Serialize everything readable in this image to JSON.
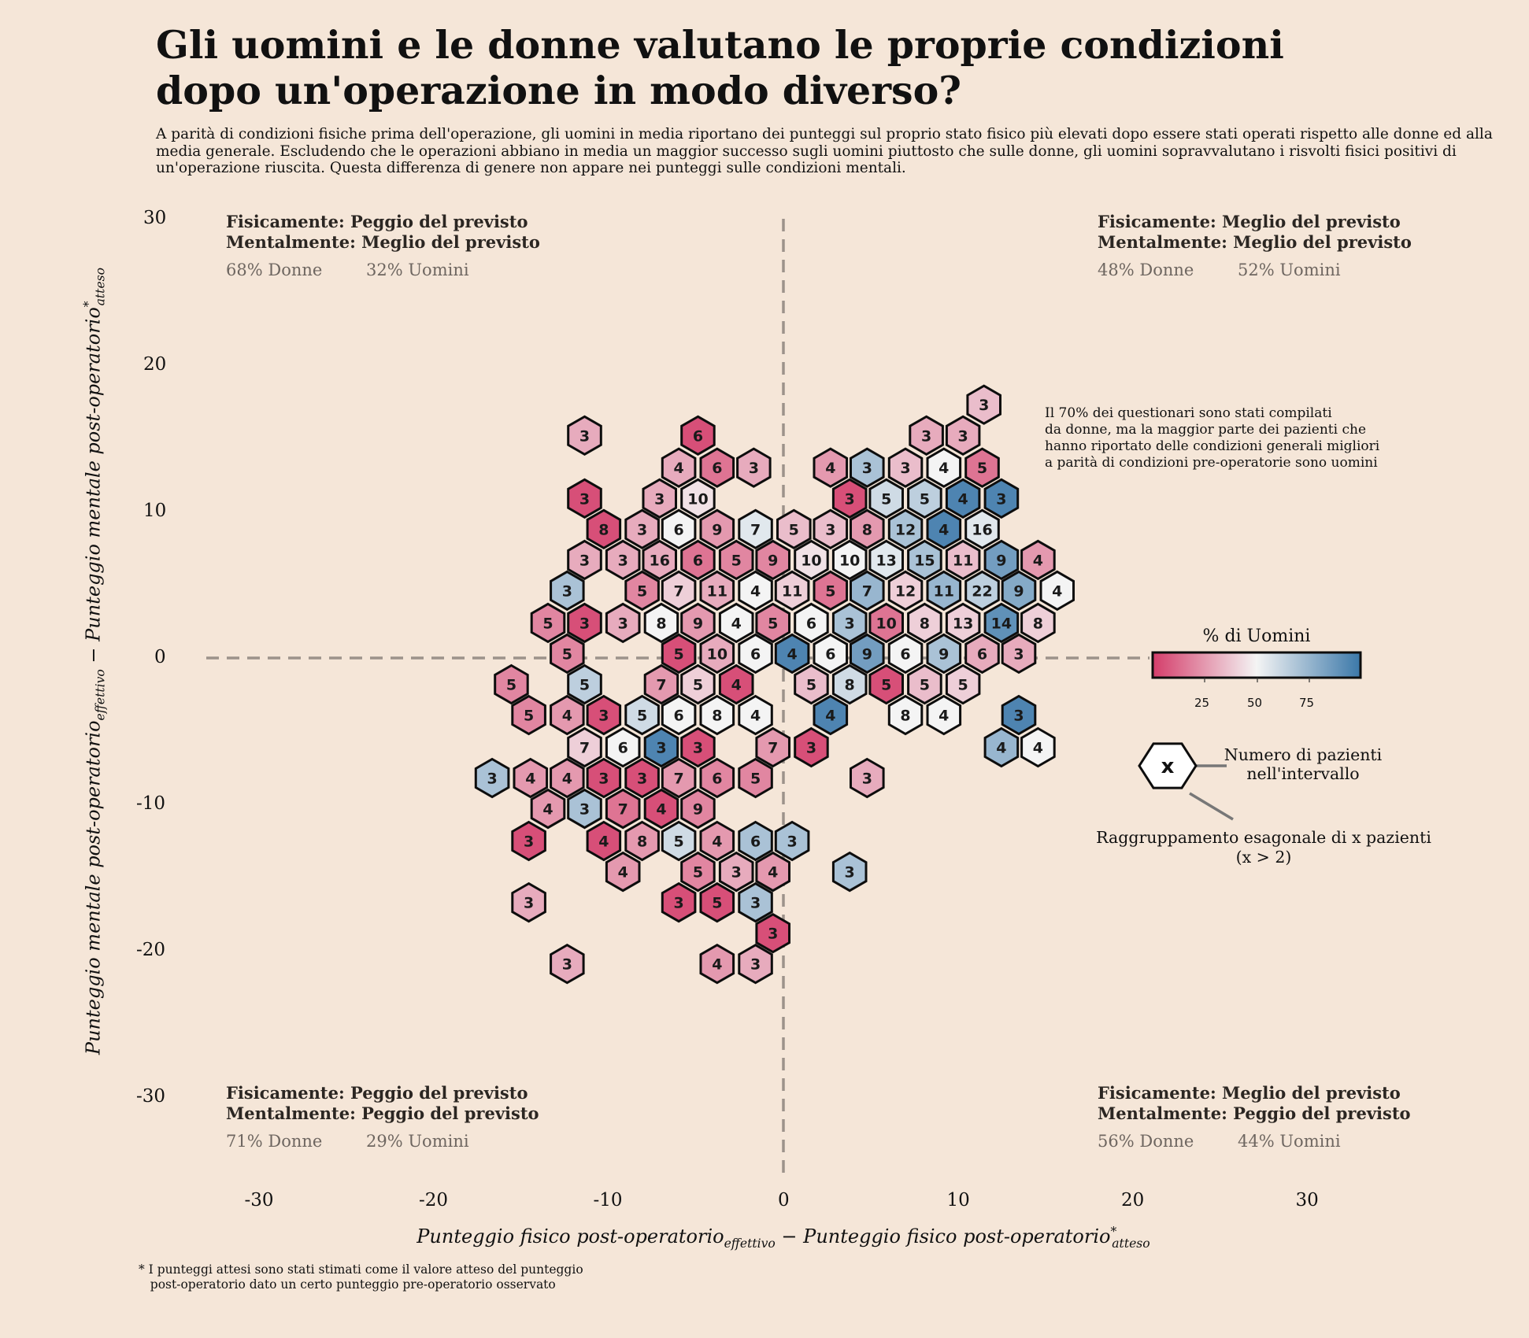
{
  "title": "Gli uomini e le donne valutano le proprie condizioni dopo un'operazione in modo diverso?",
  "subtitle": "A parità di condizioni fisiche prima dell'operazione, gli uomini in media riportano dei punteggi sul proprio stato fisico più elevati dopo essere stati operati rispetto alle donne ed alla media generale. Escludendo che le operazioni abbiano in media un maggior successo sugli uomini piuttosto che sulle donne, gli uomini sopravvalutano i risvolti fisici positivi di un'operazione riuscita. Questa differenza di genere non appare nei punteggi sulle condizioni mentali.",
  "quadrants": {
    "top_left": {
      "phys": "Fisicamente: Peggio del previsto",
      "ment": "Mentalmente: Meglio del previsto",
      "women": "68% Donne",
      "men": "32% Uomini"
    },
    "top_right": {
      "phys": "Fisicamente: Meglio del previsto",
      "ment": "Mentalmente: Meglio del previsto",
      "women": "48% Donne",
      "men": "52% Uomini"
    },
    "bottom_left": {
      "phys": "Fisicamente: Peggio del previsto",
      "ment": "Mentalmente: Peggio del previsto",
      "women": "71% Donne",
      "men": "29% Uomini"
    },
    "bottom_right": {
      "phys": "Fisicamente: Meglio del previsto",
      "ment": "Mentalmente: Peggio del previsto",
      "women": "56% Donne",
      "men": "44% Uomini"
    }
  },
  "annotation": "Il 70% dei questionari sono stati compilati\nda donne, ma la maggior parte dei pazienti che\nhanno riportato delle condizioni generali migliori\na parità di condizioni pre-operatorie sono uomini",
  "legend": {
    "colorbar_title": "% di Uomini",
    "colorbar_ticks": [
      "25",
      "50",
      "75"
    ],
    "hex_symbol": "x",
    "count_label": "Numero di pazienti\nnell'intervallo",
    "hex_label": "Raggruppamento esagonale di x pazienti\n(x > 2)"
  },
  "axes": {
    "xlabel_main": "Punteggio fisico post-operatorio",
    "xlabel_sub1": "effettivo",
    "xlabel_mid": " − Punteggio fisico post-operatorio",
    "xlabel_sup": "*",
    "xlabel_sub2": "atteso",
    "ylabel_main": "Punteggio mentale post-operatorio",
    "ylabel_sub1": "effettivo",
    "ylabel_mid": " − Punteggio mentale post-operatorio",
    "ylabel_sup": "*",
    "ylabel_sub2": "atteso",
    "xticks": [
      "-30",
      "-20",
      "-10",
      "0",
      "10",
      "20",
      "30"
    ],
    "yticks": [
      "30",
      "20",
      "10",
      "0",
      "-10",
      "-20",
      "-30"
    ]
  },
  "footnote": "* I punteggi attesi sono stati stimati come il valore atteso del punteggio\n   post-operatorio dato un certo punteggio pre-operatorio osservato",
  "colors": {
    "background": "#f5e6d8",
    "low": "#d43d6a",
    "mid": "#f4f4f4",
    "high": "#3b78a9",
    "reference_line": "#9c928a"
  },
  "chart_data": {
    "type": "heatmap",
    "subtype": "hexbin",
    "xlim": [
      -33,
      33
    ],
    "ylim": [
      -35,
      30
    ],
    "color_metric": "% di Uomini",
    "reference_lines": {
      "x": 0,
      "y": 0
    },
    "bins": [
      {
        "x": 11.5,
        "y": 17.3,
        "count": 3,
        "pct_men": 35
      },
      {
        "x": -11.4,
        "y": 15.2,
        "count": 3,
        "pct_men": 30
      },
      {
        "x": -4.9,
        "y": 15.2,
        "count": 6,
        "pct_men": 5
      },
      {
        "x": 8.2,
        "y": 15.2,
        "count": 3,
        "pct_men": 30
      },
      {
        "x": 10.3,
        "y": 15.2,
        "count": 3,
        "pct_men": 30
      },
      {
        "x": -6.0,
        "y": 13.0,
        "count": 4,
        "pct_men": 30
      },
      {
        "x": -3.8,
        "y": 13.0,
        "count": 6,
        "pct_men": 15
      },
      {
        "x": -1.7,
        "y": 13.0,
        "count": 3,
        "pct_men": 30
      },
      {
        "x": 2.7,
        "y": 13.0,
        "count": 4,
        "pct_men": 25
      },
      {
        "x": 4.8,
        "y": 13.0,
        "count": 3,
        "pct_men": 70
      },
      {
        "x": 7.0,
        "y": 13.0,
        "count": 3,
        "pct_men": 35
      },
      {
        "x": 9.2,
        "y": 13.0,
        "count": 4,
        "pct_men": 50
      },
      {
        "x": 11.4,
        "y": 13.0,
        "count": 5,
        "pct_men": 15
      },
      {
        "x": -11.4,
        "y": 10.9,
        "count": 3,
        "pct_men": 5
      },
      {
        "x": -7.1,
        "y": 10.9,
        "count": 3,
        "pct_men": 30
      },
      {
        "x": -4.9,
        "y": 10.9,
        "count": 10,
        "pct_men": 45
      },
      {
        "x": 3.8,
        "y": 10.9,
        "count": 3,
        "pct_men": 5
      },
      {
        "x": 5.9,
        "y": 10.9,
        "count": 5,
        "pct_men": 60
      },
      {
        "x": 8.1,
        "y": 10.9,
        "count": 5,
        "pct_men": 65
      },
      {
        "x": 10.3,
        "y": 10.9,
        "count": 4,
        "pct_men": 95
      },
      {
        "x": 12.5,
        "y": 10.9,
        "count": 3,
        "pct_men": 95
      },
      {
        "x": -10.3,
        "y": 8.8,
        "count": 8,
        "pct_men": 5
      },
      {
        "x": -8.1,
        "y": 8.8,
        "count": 3,
        "pct_men": 30
      },
      {
        "x": -6.0,
        "y": 8.8,
        "count": 6,
        "pct_men": 50
      },
      {
        "x": -3.8,
        "y": 8.8,
        "count": 9,
        "pct_men": 25
      },
      {
        "x": -1.6,
        "y": 8.8,
        "count": 7,
        "pct_men": 55
      },
      {
        "x": 0.6,
        "y": 8.8,
        "count": 5,
        "pct_men": 35
      },
      {
        "x": 2.7,
        "y": 8.8,
        "count": 3,
        "pct_men": 35
      },
      {
        "x": 4.8,
        "y": 8.8,
        "count": 8,
        "pct_men": 25
      },
      {
        "x": 7.0,
        "y": 8.8,
        "count": 12,
        "pct_men": 70
      },
      {
        "x": 9.2,
        "y": 8.8,
        "count": 4,
        "pct_men": 95
      },
      {
        "x": 11.4,
        "y": 8.8,
        "count": 16,
        "pct_men": 55
      },
      {
        "x": -11.4,
        "y": 6.7,
        "count": 3,
        "pct_men": 30
      },
      {
        "x": -9.2,
        "y": 6.7,
        "count": 3,
        "pct_men": 30
      },
      {
        "x": -7.1,
        "y": 6.7,
        "count": 16,
        "pct_men": 30
      },
      {
        "x": -4.9,
        "y": 6.7,
        "count": 6,
        "pct_men": 15
      },
      {
        "x": -2.7,
        "y": 6.7,
        "count": 5,
        "pct_men": 20
      },
      {
        "x": -0.6,
        "y": 6.7,
        "count": 9,
        "pct_men": 20
      },
      {
        "x": 1.6,
        "y": 6.7,
        "count": 10,
        "pct_men": 45
      },
      {
        "x": 3.8,
        "y": 6.7,
        "count": 10,
        "pct_men": 50
      },
      {
        "x": 5.9,
        "y": 6.7,
        "count": 13,
        "pct_men": 55
      },
      {
        "x": 8.1,
        "y": 6.7,
        "count": 15,
        "pct_men": 70
      },
      {
        "x": 10.3,
        "y": 6.7,
        "count": 11,
        "pct_men": 35
      },
      {
        "x": 12.5,
        "y": 6.7,
        "count": 9,
        "pct_men": 85
      },
      {
        "x": 14.6,
        "y": 6.7,
        "count": 4,
        "pct_men": 25
      },
      {
        "x": -12.4,
        "y": 4.6,
        "count": 3,
        "pct_men": 70
      },
      {
        "x": -8.1,
        "y": 4.6,
        "count": 5,
        "pct_men": 20
      },
      {
        "x": -6.0,
        "y": 4.6,
        "count": 7,
        "pct_men": 40
      },
      {
        "x": -3.8,
        "y": 4.6,
        "count": 11,
        "pct_men": 30
      },
      {
        "x": -1.6,
        "y": 4.6,
        "count": 4,
        "pct_men": 50
      },
      {
        "x": 0.5,
        "y": 4.6,
        "count": 11,
        "pct_men": 40
      },
      {
        "x": 2.7,
        "y": 4.6,
        "count": 5,
        "pct_men": 15
      },
      {
        "x": 4.8,
        "y": 4.6,
        "count": 7,
        "pct_men": 75
      },
      {
        "x": 7.0,
        "y": 4.6,
        "count": 12,
        "pct_men": 40
      },
      {
        "x": 9.2,
        "y": 4.6,
        "count": 11,
        "pct_men": 75
      },
      {
        "x": 11.4,
        "y": 4.6,
        "count": 22,
        "pct_men": 65
      },
      {
        "x": 13.5,
        "y": 4.6,
        "count": 9,
        "pct_men": 80
      },
      {
        "x": 15.7,
        "y": 4.6,
        "count": 4,
        "pct_men": 50
      },
      {
        "x": -13.5,
        "y": 2.4,
        "count": 5,
        "pct_men": 20
      },
      {
        "x": -11.4,
        "y": 2.4,
        "count": 3,
        "pct_men": 5
      },
      {
        "x": -9.2,
        "y": 2.4,
        "count": 3,
        "pct_men": 30
      },
      {
        "x": -7.0,
        "y": 2.4,
        "count": 8,
        "pct_men": 50
      },
      {
        "x": -4.9,
        "y": 2.4,
        "count": 9,
        "pct_men": 25
      },
      {
        "x": -2.7,
        "y": 2.4,
        "count": 4,
        "pct_men": 50
      },
      {
        "x": -0.6,
        "y": 2.4,
        "count": 5,
        "pct_men": 20
      },
      {
        "x": 1.6,
        "y": 2.4,
        "count": 6,
        "pct_men": 50
      },
      {
        "x": 3.8,
        "y": 2.4,
        "count": 3,
        "pct_men": 70
      },
      {
        "x": 5.9,
        "y": 2.4,
        "count": 10,
        "pct_men": 15
      },
      {
        "x": 8.1,
        "y": 2.4,
        "count": 8,
        "pct_men": 40
      },
      {
        "x": 10.3,
        "y": 2.4,
        "count": 13,
        "pct_men": 40
      },
      {
        "x": 12.5,
        "y": 2.4,
        "count": 14,
        "pct_men": 90
      },
      {
        "x": 14.6,
        "y": 2.4,
        "count": 8,
        "pct_men": 40
      },
      {
        "x": -12.4,
        "y": 0.3,
        "count": 5,
        "pct_men": 20
      },
      {
        "x": -6.0,
        "y": 0.3,
        "count": 5,
        "pct_men": 5
      },
      {
        "x": -3.8,
        "y": 0.3,
        "count": 10,
        "pct_men": 30
      },
      {
        "x": -1.6,
        "y": 0.3,
        "count": 6,
        "pct_men": 50
      },
      {
        "x": 0.5,
        "y": 0.3,
        "count": 4,
        "pct_men": 95
      },
      {
        "x": 2.7,
        "y": 0.3,
        "count": 6,
        "pct_men": 50
      },
      {
        "x": 4.8,
        "y": 0.3,
        "count": 9,
        "pct_men": 85
      },
      {
        "x": 7.0,
        "y": 0.3,
        "count": 6,
        "pct_men": 50
      },
      {
        "x": 9.2,
        "y": 0.3,
        "count": 9,
        "pct_men": 70
      },
      {
        "x": 11.4,
        "y": 0.3,
        "count": 6,
        "pct_men": 30
      },
      {
        "x": 13.5,
        "y": 0.3,
        "count": 3,
        "pct_men": 30
      },
      {
        "x": -15.6,
        "y": -1.8,
        "count": 5,
        "pct_men": 20
      },
      {
        "x": -11.4,
        "y": -1.8,
        "count": 5,
        "pct_men": 65
      },
      {
        "x": -7.0,
        "y": -1.8,
        "count": 7,
        "pct_men": 25
      },
      {
        "x": -4.9,
        "y": -1.8,
        "count": 5,
        "pct_men": 40
      },
      {
        "x": -2.7,
        "y": -1.8,
        "count": 4,
        "pct_men": 5
      },
      {
        "x": 1.6,
        "y": -1.8,
        "count": 5,
        "pct_men": 35
      },
      {
        "x": 3.8,
        "y": -1.8,
        "count": 8,
        "pct_men": 60
      },
      {
        "x": 5.9,
        "y": -1.8,
        "count": 5,
        "pct_men": 5
      },
      {
        "x": 8.1,
        "y": -1.8,
        "count": 5,
        "pct_men": 35
      },
      {
        "x": 10.3,
        "y": -1.8,
        "count": 5,
        "pct_men": 40
      },
      {
        "x": -14.6,
        "y": -3.9,
        "count": 5,
        "pct_men": 20
      },
      {
        "x": -12.4,
        "y": -3.9,
        "count": 4,
        "pct_men": 25
      },
      {
        "x": -10.3,
        "y": -3.9,
        "count": 3,
        "pct_men": 5
      },
      {
        "x": -8.1,
        "y": -3.9,
        "count": 5,
        "pct_men": 60
      },
      {
        "x": -6.0,
        "y": -3.9,
        "count": 6,
        "pct_men": 50
      },
      {
        "x": -3.8,
        "y": -3.9,
        "count": 8,
        "pct_men": 50
      },
      {
        "x": -1.6,
        "y": -3.9,
        "count": 4,
        "pct_men": 50
      },
      {
        "x": 2.7,
        "y": -3.9,
        "count": 4,
        "pct_men": 95
      },
      {
        "x": 7.0,
        "y": -3.9,
        "count": 8,
        "pct_men": 50
      },
      {
        "x": 9.2,
        "y": -3.9,
        "count": 4,
        "pct_men": 50
      },
      {
        "x": 13.5,
        "y": -3.9,
        "count": 3,
        "pct_men": 95
      },
      {
        "x": -11.4,
        "y": -6.1,
        "count": 7,
        "pct_men": 40
      },
      {
        "x": -9.2,
        "y": -6.1,
        "count": 6,
        "pct_men": 50
      },
      {
        "x": -7.0,
        "y": -6.1,
        "count": 3,
        "pct_men": 95
      },
      {
        "x": -4.9,
        "y": -6.1,
        "count": 3,
        "pct_men": 5
      },
      {
        "x": -0.6,
        "y": -6.1,
        "count": 7,
        "pct_men": 25
      },
      {
        "x": 1.6,
        "y": -6.1,
        "count": 3,
        "pct_men": 5
      },
      {
        "x": 12.5,
        "y": -6.1,
        "count": 4,
        "pct_men": 75
      },
      {
        "x": 14.6,
        "y": -6.1,
        "count": 4,
        "pct_men": 50
      },
      {
        "x": -16.7,
        "y": -8.2,
        "count": 3,
        "pct_men": 70
      },
      {
        "x": -14.5,
        "y": -8.2,
        "count": 4,
        "pct_men": 25
      },
      {
        "x": -12.4,
        "y": -8.2,
        "count": 4,
        "pct_men": 25
      },
      {
        "x": -10.3,
        "y": -8.2,
        "count": 3,
        "pct_men": 5
      },
      {
        "x": -8.1,
        "y": -8.2,
        "count": 3,
        "pct_men": 5
      },
      {
        "x": -6.0,
        "y": -8.2,
        "count": 7,
        "pct_men": 25
      },
      {
        "x": -3.8,
        "y": -8.2,
        "count": 6,
        "pct_men": 20
      },
      {
        "x": -1.6,
        "y": -8.2,
        "count": 5,
        "pct_men": 20
      },
      {
        "x": 4.8,
        "y": -8.2,
        "count": 3,
        "pct_men": 30
      },
      {
        "x": -13.5,
        "y": -10.3,
        "count": 4,
        "pct_men": 25
      },
      {
        "x": -11.4,
        "y": -10.3,
        "count": 3,
        "pct_men": 70
      },
      {
        "x": -9.2,
        "y": -10.3,
        "count": 7,
        "pct_men": 15
      },
      {
        "x": -7.0,
        "y": -10.3,
        "count": 4,
        "pct_men": 5
      },
      {
        "x": -4.9,
        "y": -10.3,
        "count": 9,
        "pct_men": 20
      },
      {
        "x": -14.6,
        "y": -12.5,
        "count": 3,
        "pct_men": 5
      },
      {
        "x": -10.3,
        "y": -12.5,
        "count": 4,
        "pct_men": 5
      },
      {
        "x": -8.1,
        "y": -12.5,
        "count": 8,
        "pct_men": 25
      },
      {
        "x": -6.0,
        "y": -12.5,
        "count": 5,
        "pct_men": 60
      },
      {
        "x": -3.8,
        "y": -12.5,
        "count": 4,
        "pct_men": 25
      },
      {
        "x": -1.6,
        "y": -12.5,
        "count": 6,
        "pct_men": 70
      },
      {
        "x": 0.5,
        "y": -12.5,
        "count": 3,
        "pct_men": 70
      },
      {
        "x": -9.2,
        "y": -14.6,
        "count": 4,
        "pct_men": 25
      },
      {
        "x": -4.9,
        "y": -14.6,
        "count": 5,
        "pct_men": 20
      },
      {
        "x": -2.7,
        "y": -14.6,
        "count": 3,
        "pct_men": 30
      },
      {
        "x": -0.6,
        "y": -14.6,
        "count": 4,
        "pct_men": 25
      },
      {
        "x": 3.8,
        "y": -14.6,
        "count": 3,
        "pct_men": 70
      },
      {
        "x": -14.6,
        "y": -16.7,
        "count": 3,
        "pct_men": 30
      },
      {
        "x": -6.0,
        "y": -16.7,
        "count": 3,
        "pct_men": 5
      },
      {
        "x": -3.8,
        "y": -16.7,
        "count": 5,
        "pct_men": 5
      },
      {
        "x": -1.6,
        "y": -16.7,
        "count": 3,
        "pct_men": 70
      },
      {
        "x": -0.6,
        "y": -18.8,
        "count": 3,
        "pct_men": 5
      },
      {
        "x": -12.4,
        "y": -20.9,
        "count": 3,
        "pct_men": 30
      },
      {
        "x": -3.8,
        "y": -20.9,
        "count": 4,
        "pct_men": 25
      },
      {
        "x": -1.6,
        "y": -20.9,
        "count": 3,
        "pct_men": 30
      }
    ]
  }
}
